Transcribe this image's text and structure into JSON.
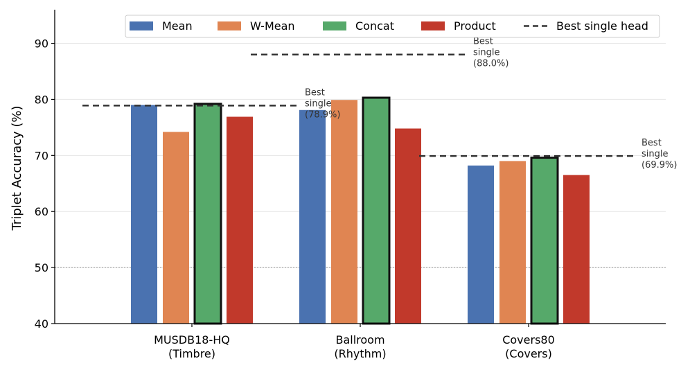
{
  "chart_data": {
    "type": "bar",
    "title": "",
    "xlabel": "",
    "ylabel": "Triplet Accuracy (%)",
    "ylim": [
      40,
      96
    ],
    "yticks": [
      40,
      50,
      60,
      70,
      80,
      90
    ],
    "grid": "horizontal",
    "chance_level": 50,
    "legend_position": "top-right",
    "categories": [
      {
        "line1": "MUSDB18-HQ",
        "line2": "(Timbre)"
      },
      {
        "line1": "Ballroom",
        "line2": "(Rhythm)"
      },
      {
        "line1": "Covers80",
        "line2": "(Covers)"
      }
    ],
    "series": [
      {
        "name": "Mean",
        "color": "#4a72b0",
        "values": [
          79.0,
          78.1,
          68.2
        ]
      },
      {
        "name": "W-Mean",
        "color": "#e08552",
        "values": [
          74.2,
          79.9,
          69.0
        ]
      },
      {
        "name": "Concat",
        "color": "#56a96a",
        "values": [
          79.2,
          80.3,
          69.6
        ],
        "highlighted": true
      },
      {
        "name": "Product",
        "color": "#c1392b",
        "values": [
          76.9,
          74.8,
          66.5
        ]
      }
    ],
    "best_single": {
      "legend_label": "Best single head",
      "values": [
        78.9,
        88.0,
        69.9
      ],
      "labels": [
        [
          "Best",
          "single",
          "(78.9%)"
        ],
        [
          "Best",
          "single",
          "(88.0%)"
        ],
        [
          "Best",
          "single",
          "(69.9%)"
        ]
      ]
    }
  }
}
